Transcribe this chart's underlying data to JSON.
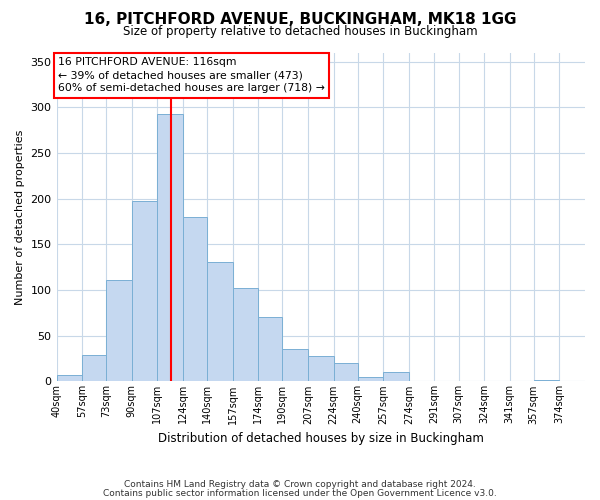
{
  "title": "16, PITCHFORD AVENUE, BUCKINGHAM, MK18 1GG",
  "subtitle": "Size of property relative to detached houses in Buckingham",
  "xlabel": "Distribution of detached houses by size in Buckingham",
  "ylabel": "Number of detached properties",
  "bar_labels": [
    "40sqm",
    "57sqm",
    "73sqm",
    "90sqm",
    "107sqm",
    "124sqm",
    "140sqm",
    "157sqm",
    "174sqm",
    "190sqm",
    "207sqm",
    "224sqm",
    "240sqm",
    "257sqm",
    "274sqm",
    "291sqm",
    "307sqm",
    "324sqm",
    "341sqm",
    "357sqm",
    "374sqm"
  ],
  "bar_values": [
    7,
    29,
    111,
    198,
    293,
    180,
    131,
    102,
    70,
    36,
    28,
    20,
    5,
    10,
    0,
    0,
    0,
    0,
    0,
    2,
    0
  ],
  "bar_color": "#c5d8f0",
  "bar_edgecolor": "#7aafd4",
  "vline_x": 116,
  "ylim": [
    0,
    360
  ],
  "yticks": [
    0,
    50,
    100,
    150,
    200,
    250,
    300,
    350
  ],
  "annotation_title": "16 PITCHFORD AVENUE: 116sqm",
  "annotation_line1": "← 39% of detached houses are smaller (473)",
  "annotation_line2": "60% of semi-detached houses are larger (718) →",
  "footer1": "Contains HM Land Registry data © Crown copyright and database right 2024.",
  "footer2": "Contains public sector information licensed under the Open Government Licence v3.0.",
  "bg_color": "#ffffff",
  "grid_color": "#c8d8e8"
}
